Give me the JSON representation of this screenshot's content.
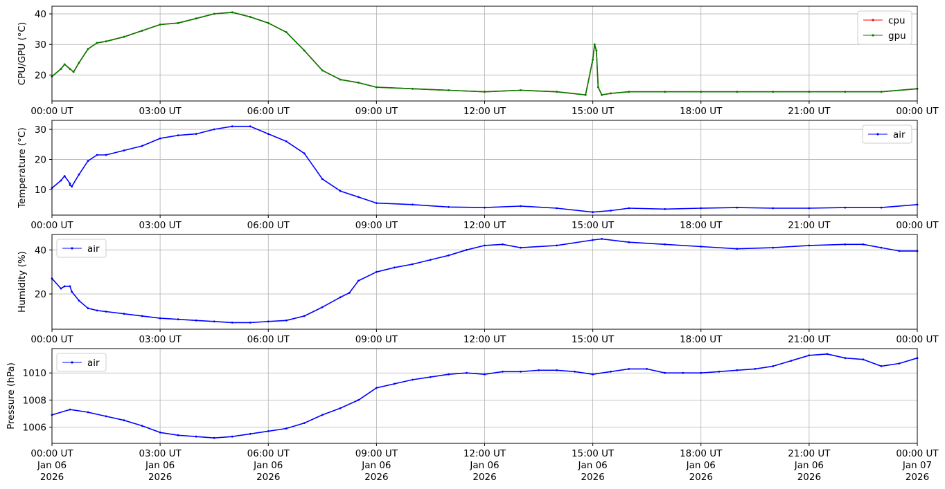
{
  "figure": {
    "background": "#ffffff"
  },
  "chart_data": [
    {
      "type": "line",
      "ylabel": "CPU/GPU (°C)",
      "ylim": [
        11.5,
        42.5
      ],
      "yticks": [
        20,
        30,
        40
      ],
      "xlim": [
        "2026-01-06T00:00Z",
        "2026-01-07T00:00Z"
      ],
      "xtick_labels": [
        "00:00 UT",
        "03:00 UT",
        "06:00 UT",
        "09:00 UT",
        "12:00 UT",
        "15:00 UT",
        "18:00 UT",
        "21:00 UT",
        "00:00 UT"
      ],
      "grid": true,
      "legend_position": "upper right",
      "series": [
        {
          "name": "cpu",
          "color": "#ff0000",
          "x_hours": [
            0,
            0.25,
            0.35,
            0.5,
            0.6,
            0.75,
            1,
            1.25,
            1.5,
            2,
            2.5,
            3,
            3.5,
            4,
            4.5,
            5,
            5.5,
            6,
            6.5,
            7,
            7.5,
            8,
            8.5,
            9,
            10,
            11,
            12,
            13,
            14,
            14.8,
            15.0,
            15.05,
            15.1,
            15.15,
            15.25,
            15.5,
            16,
            17,
            18,
            19,
            20,
            21,
            22,
            23,
            24
          ],
          "values": [
            19.5,
            22,
            23.5,
            22,
            21,
            24,
            28.5,
            30.5,
            31,
            32.5,
            34.5,
            36.5,
            37,
            38.5,
            40,
            40.5,
            39,
            37,
            34,
            28,
            21.5,
            18.5,
            17.5,
            16,
            15.5,
            15,
            14.5,
            15,
            14.5,
            13.5,
            25,
            30,
            28,
            16,
            13.5,
            14,
            14.5,
            14.5,
            14.5,
            14.5,
            14.5,
            14.5,
            14.5,
            14.5,
            15.5
          ]
        },
        {
          "name": "gpu",
          "color": "#008000",
          "x_hours": [
            0,
            0.25,
            0.35,
            0.5,
            0.6,
            0.75,
            1,
            1.25,
            1.5,
            2,
            2.5,
            3,
            3.5,
            4,
            4.5,
            5,
            5.5,
            6,
            6.5,
            7,
            7.5,
            8,
            8.5,
            9,
            10,
            11,
            12,
            13,
            14,
            14.8,
            15.0,
            15.05,
            15.1,
            15.15,
            15.25,
            15.5,
            16,
            17,
            18,
            19,
            20,
            21,
            22,
            23,
            24
          ],
          "values": [
            19.5,
            22,
            23.5,
            22,
            21,
            24,
            28.5,
            30.5,
            31,
            32.5,
            34.5,
            36.5,
            37,
            38.5,
            40,
            40.5,
            39,
            37,
            34,
            28,
            21.5,
            18.5,
            17.5,
            16,
            15.5,
            15,
            14.5,
            15,
            14.5,
            13.5,
            25,
            30,
            28,
            16,
            13.5,
            14,
            14.5,
            14.5,
            14.5,
            14.5,
            14.5,
            14.5,
            14.5,
            14.5,
            15.5
          ]
        }
      ]
    },
    {
      "type": "line",
      "ylabel": "Temperature (°C)",
      "ylim": [
        1.5,
        33
      ],
      "yticks": [
        10,
        20,
        30
      ],
      "xlim": [
        "2026-01-06T00:00Z",
        "2026-01-07T00:00Z"
      ],
      "xtick_labels": [
        "00:00 UT",
        "03:00 UT",
        "06:00 UT",
        "09:00 UT",
        "12:00 UT",
        "15:00 UT",
        "18:00 UT",
        "21:00 UT",
        "00:00 UT"
      ],
      "grid": true,
      "legend_position": "upper right",
      "series": [
        {
          "name": "air",
          "color": "#0000ff",
          "x_hours": [
            0,
            0.25,
            0.35,
            0.5,
            0.5,
            0.55,
            0.75,
            1,
            1.25,
            1.5,
            2,
            2.5,
            3,
            3.5,
            4,
            4.5,
            5,
            5.5,
            6,
            6.5,
            7,
            7.5,
            8,
            8.5,
            9,
            10,
            11,
            12,
            13,
            14,
            15,
            15.5,
            16,
            17,
            18,
            19,
            20,
            21,
            22,
            23,
            24
          ],
          "values": [
            10.5,
            13,
            14.5,
            12,
            11.5,
            11,
            15,
            19.5,
            21.5,
            21.5,
            23,
            24.5,
            27,
            28,
            28.5,
            30,
            31,
            31,
            28.5,
            26,
            22,
            13.5,
            9.5,
            7.5,
            5.5,
            5,
            4.2,
            4,
            4.5,
            3.8,
            2.5,
            3,
            3.8,
            3.5,
            3.8,
            4,
            3.8,
            3.8,
            4,
            4,
            5
          ]
        }
      ]
    },
    {
      "type": "line",
      "ylabel": "Humidity (%)",
      "ylim": [
        4,
        47
      ],
      "yticks": [
        20,
        40
      ],
      "xlim": [
        "2026-01-06T00:00Z",
        "2026-01-07T00:00Z"
      ],
      "xtick_labels": [
        "00:00 UT",
        "03:00 UT",
        "06:00 UT",
        "09:00 UT",
        "12:00 UT",
        "15:00 UT",
        "18:00 UT",
        "21:00 UT",
        "00:00 UT"
      ],
      "grid": true,
      "legend_position": "upper left",
      "series": [
        {
          "name": "air",
          "color": "#0000ff",
          "x_hours": [
            0,
            0.25,
            0.35,
            0.5,
            0.55,
            0.75,
            1,
            1.25,
            1.5,
            2,
            2.5,
            3,
            3.5,
            4,
            4.5,
            5,
            5.5,
            6,
            6.5,
            7,
            7.5,
            8,
            8.25,
            8.5,
            9,
            9.5,
            10,
            10.5,
            11,
            11.5,
            12,
            12.5,
            13,
            14,
            15,
            15.25,
            16,
            17,
            18,
            19,
            20,
            21,
            22,
            22.5,
            23,
            23.5,
            24
          ],
          "values": [
            27,
            22.5,
            23.5,
            23.5,
            21,
            17,
            13.5,
            12.5,
            12,
            11,
            10,
            9,
            8.5,
            8,
            7.5,
            7,
            7,
            7.5,
            8,
            10,
            14,
            18.5,
            20.5,
            26,
            30,
            32,
            33.5,
            35.5,
            37.5,
            40,
            42,
            42.5,
            41,
            42,
            44.5,
            45,
            43.5,
            42.5,
            41.5,
            40.5,
            41,
            42,
            42.5,
            42.5,
            41,
            39.5,
            39.5
          ]
        }
      ]
    },
    {
      "type": "line",
      "ylabel": "Pressure (hPa)",
      "ylim": [
        1004.8,
        1011.8
      ],
      "yticks": [
        1006,
        1008,
        1010
      ],
      "yticklabels": [
        "1006",
        "1008",
        "1010"
      ],
      "xlim": [
        "2026-01-06T00:00Z",
        "2026-01-07T00:00Z"
      ],
      "xtick_labels": [
        [
          "00:00 UT",
          "Jan 06",
          "2026"
        ],
        [
          "03:00 UT",
          "Jan 06",
          "2026"
        ],
        [
          "06:00 UT",
          "Jan 06",
          "2026"
        ],
        [
          "09:00 UT",
          "Jan 06",
          "2026"
        ],
        [
          "12:00 UT",
          "Jan 06",
          "2026"
        ],
        [
          "15:00 UT",
          "Jan 06",
          "2026"
        ],
        [
          "18:00 UT",
          "Jan 06",
          "2026"
        ],
        [
          "21:00 UT",
          "Jan 06",
          "2026"
        ],
        [
          "00:00 UT",
          "Jan 07",
          "2026"
        ]
      ],
      "grid": true,
      "legend_position": "upper left",
      "series": [
        {
          "name": "air",
          "color": "#0000ff",
          "x_hours": [
            0,
            0.5,
            1,
            1.5,
            2,
            2.5,
            3,
            3.5,
            4,
            4.5,
            5,
            5.5,
            6,
            6.5,
            7,
            7.5,
            8,
            8.5,
            9,
            9.5,
            10,
            10.5,
            11,
            11.5,
            12,
            12.5,
            13,
            13.5,
            14,
            14.5,
            15,
            15.5,
            16,
            16.5,
            17,
            17.5,
            18,
            18.5,
            19,
            19.5,
            20,
            20.5,
            21,
            21.5,
            22,
            22.5,
            23,
            23.5,
            24
          ],
          "values": [
            1006.9,
            1007.3,
            1007.1,
            1006.8,
            1006.5,
            1006.1,
            1005.6,
            1005.4,
            1005.3,
            1005.2,
            1005.3,
            1005.5,
            1005.7,
            1005.9,
            1006.3,
            1006.9,
            1007.4,
            1008.0,
            1008.9,
            1009.2,
            1009.5,
            1009.7,
            1009.9,
            1010.0,
            1009.9,
            1010.1,
            1010.1,
            1010.2,
            1010.2,
            1010.1,
            1009.9,
            1010.1,
            1010.3,
            1010.3,
            1010.0,
            1010.0,
            1010.0,
            1010.1,
            1010.2,
            1010.3,
            1010.5,
            1010.9,
            1011.3,
            1011.4,
            1011.1,
            1011.0,
            1010.5,
            1010.7,
            1011.1
          ]
        }
      ]
    }
  ]
}
